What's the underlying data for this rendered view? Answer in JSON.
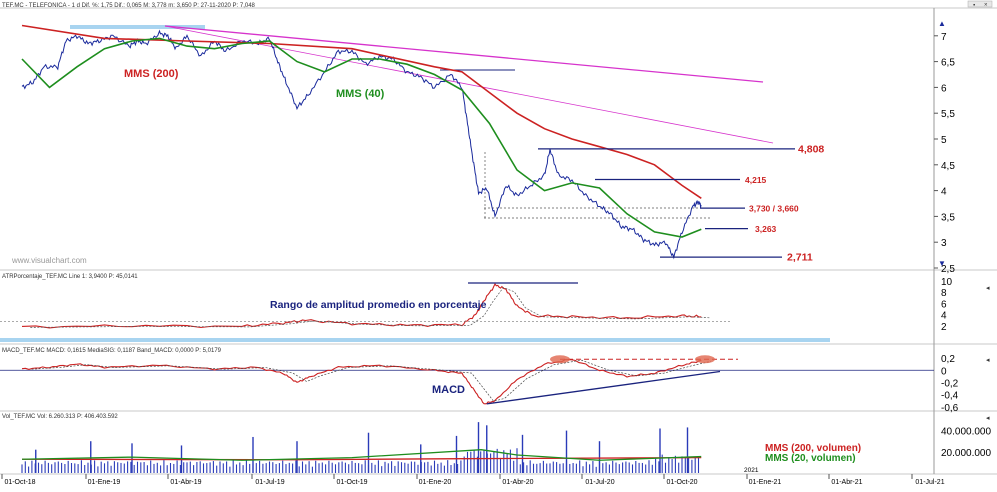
{
  "header": {
    "main": "TEF.MC - TELEFONICA - 1 d Dif. %: 1,75 Dif.: 0,065 M: 3,778 m: 3,650 P: 27-11-2020 P: 7,048",
    "atr": "ATRPorcentaje_TEF.MC Line 1: 3,9400 P: 45,0141",
    "macd": "MACD_TEF.MC MACD: 0,1615 MediaSIG: 0,1187 Band_MACD: 0,0000 P: 5,0179",
    "vol": "Vol_TEF.MC Vol: 6.260.313 P: 406.403.592"
  },
  "watermark": "www.visualchart.com",
  "annotations": {
    "mms200": "MMS (200)",
    "mms40": "MMS (40)",
    "atr_title": "Rango de amplitud promedio en porcentaje",
    "macd_title": "MACD",
    "vol_mms200": "MMS (200, volumen)",
    "vol_mms20": "MMS (20, volumen)"
  },
  "colors": {
    "price": "#1a2a9c",
    "mms200": "#cc2222",
    "mms40": "#1e8e1e",
    "trend": "#d633cc",
    "level": "#1a237e",
    "macd_signal": "#cc2222",
    "volume": "#2a3ab8",
    "highlight": "#a8d4f0"
  },
  "chart_data": {
    "type": "line",
    "x_ticks": [
      "01-Oct-18",
      "01-Ene-19",
      "01-Abr-19",
      "01-Jul-19",
      "01-Oct-19",
      "01-Ene-20",
      "01-Abr-20",
      "01-Jul-20",
      "01-Oct-20",
      "01-Ene-21",
      "01-Abr-21",
      "01-Jul-21"
    ],
    "x_extra_label": "2021",
    "panels": {
      "price": {
        "ylim": [
          2.5,
          7.5
        ],
        "y_ticks": [
          "7",
          "6,5",
          "6",
          "5,5",
          "5",
          "4,5",
          "4",
          "3,5",
          "3",
          "2,5"
        ],
        "y_tick_values": [
          7,
          6.5,
          6,
          5.5,
          5,
          4.5,
          4,
          3.5,
          3,
          2.5
        ],
        "series": [
          {
            "role": "price",
            "points": [
              [
                0,
                6.0
              ],
              [
                0.4,
                6.1
              ],
              [
                0.8,
                6.4
              ],
              [
                1.3,
                6.4
              ],
              [
                1.6,
                6.9
              ],
              [
                2.0,
                7.0
              ],
              [
                2.4,
                6.85
              ],
              [
                2.8,
                6.9
              ],
              [
                3.3,
                7.0
              ],
              [
                3.9,
                6.8
              ],
              [
                4.2,
                6.9
              ],
              [
                4.5,
                6.85
              ],
              [
                5.0,
                7.05
              ],
              [
                5.3,
                7.0
              ],
              [
                5.6,
                6.75
              ],
              [
                6.0,
                7.0
              ],
              [
                6.5,
                6.6
              ],
              [
                7.0,
                6.9
              ],
              [
                7.4,
                6.7
              ],
              [
                8.0,
                6.9
              ],
              [
                8.6,
                6.85
              ],
              [
                9.0,
                6.95
              ],
              [
                9.3,
                6.5
              ],
              [
                9.6,
                6.1
              ],
              [
                10.0,
                5.6
              ],
              [
                10.4,
                5.85
              ],
              [
                11.0,
                6.3
              ],
              [
                11.5,
                6.7
              ],
              [
                12.0,
                6.7
              ],
              [
                12.5,
                6.45
              ],
              [
                13.0,
                6.6
              ],
              [
                13.5,
                6.55
              ],
              [
                14.0,
                6.3
              ],
              [
                14.5,
                6.2
              ],
              [
                15.0,
                6.0
              ],
              [
                15.6,
                6.25
              ],
              [
                16.0,
                6.0
              ],
              [
                16.2,
                5.3
              ],
              [
                16.4,
                4.6
              ],
              [
                16.6,
                3.95
              ],
              [
                16.9,
                4.05
              ],
              [
                17.2,
                3.5
              ],
              [
                17.6,
                4.1
              ],
              [
                18.0,
                3.9
              ],
              [
                18.5,
                4.1
              ],
              [
                19.0,
                4.3
              ],
              [
                19.2,
                4.8
              ],
              [
                19.5,
                4.3
              ],
              [
                20.0,
                4.2
              ],
              [
                20.5,
                3.9
              ],
              [
                21.0,
                3.7
              ],
              [
                21.4,
                3.55
              ],
              [
                21.8,
                3.3
              ],
              [
                22.2,
                3.25
              ],
              [
                22.6,
                3.05
              ],
              [
                23.0,
                2.95
              ],
              [
                23.4,
                3.0
              ],
              [
                23.7,
                2.711
              ],
              [
                24.0,
                3.2
              ],
              [
                24.4,
                3.7
              ],
              [
                24.6,
                3.78
              ],
              [
                24.7,
                3.7
              ]
            ]
          },
          {
            "role": "mms200",
            "points": [
              [
                0,
                7.2
              ],
              [
                3,
                6.95
              ],
              [
                6,
                6.9
              ],
              [
                9,
                6.85
              ],
              [
                12,
                6.75
              ],
              [
                15,
                6.4
              ],
              [
                16,
                6.3
              ],
              [
                17,
                5.9
              ],
              [
                18,
                5.5
              ],
              [
                19,
                5.2
              ],
              [
                20,
                5.0
              ],
              [
                21,
                4.85
              ],
              [
                22,
                4.7
              ],
              [
                23,
                4.5
              ],
              [
                24,
                4.1
              ],
              [
                24.7,
                3.85
              ]
            ]
          },
          {
            "role": "mms40",
            "points": [
              [
                0,
                6.55
              ],
              [
                1,
                6.0
              ],
              [
                2,
                6.4
              ],
              [
                3,
                6.75
              ],
              [
                4,
                6.9
              ],
              [
                5,
                6.95
              ],
              [
                6,
                6.8
              ],
              [
                7,
                6.75
              ],
              [
                8,
                6.85
              ],
              [
                9,
                6.9
              ],
              [
                10,
                6.5
              ],
              [
                11,
                6.3
              ],
              [
                12,
                6.55
              ],
              [
                13,
                6.55
              ],
              [
                14,
                6.45
              ],
              [
                15,
                6.25
              ],
              [
                16,
                5.95
              ],
              [
                17,
                5.3
              ],
              [
                18,
                4.4
              ],
              [
                19,
                4.0
              ],
              [
                20,
                4.15
              ],
              [
                21,
                4.05
              ],
              [
                22,
                3.55
              ],
              [
                23,
                3.2
              ],
              [
                24,
                3.1
              ],
              [
                24.7,
                3.25
              ]
            ]
          }
        ],
        "levels": [
          "4,808",
          "4,215",
          "3,730 / 3,660",
          "3,263",
          "2,711"
        ],
        "level_values": [
          4.808,
          4.215,
          3.66,
          3.263,
          2.711
        ]
      },
      "atr": {
        "ylim": [
          0,
          10
        ],
        "y_ticks": [
          "10",
          "8",
          "6",
          "4",
          "2"
        ],
        "y_tick_values": [
          10,
          8,
          6,
          4,
          2
        ],
        "series": [
          {
            "role": "atr",
            "points": [
              [
                0,
                1.8
              ],
              [
                4,
                2.0
              ],
              [
                8,
                1.9
              ],
              [
                9.5,
                2.5
              ],
              [
                10.3,
                3.0
              ],
              [
                12,
                2.4
              ],
              [
                14,
                2.1
              ],
              [
                16,
                2.2
              ],
              [
                16.5,
                4.0
              ],
              [
                16.8,
                6.5
              ],
              [
                17.2,
                9.3
              ],
              [
                17.6,
                8.5
              ],
              [
                18.0,
                5.5
              ],
              [
                18.6,
                3.8
              ],
              [
                20,
                3.6
              ],
              [
                22,
                3.4
              ],
              [
                24,
                3.8
              ],
              [
                24.7,
                3.6
              ]
            ]
          }
        ]
      },
      "macd": {
        "ylim": [
          -0.65,
          0.25
        ],
        "y_ticks": [
          "0,2",
          "0",
          "-0,2",
          "-0,4",
          "-0,6"
        ],
        "y_tick_values": [
          0.2,
          0,
          -0.2,
          -0.4,
          -0.6
        ],
        "series": [
          {
            "role": "macd",
            "points": [
              [
                0,
                0.02
              ],
              [
                1,
                0.05
              ],
              [
                2,
                0.1
              ],
              [
                3,
                0.05
              ],
              [
                5,
                0.08
              ],
              [
                7,
                0.02
              ],
              [
                8.5,
                0.05
              ],
              [
                9.5,
                -0.05
              ],
              [
                10.0,
                -0.2
              ],
              [
                10.5,
                -0.1
              ],
              [
                11.5,
                0.05
              ],
              [
                13,
                0.08
              ],
              [
                15,
                0.0
              ],
              [
                16,
                -0.05
              ],
              [
                16.4,
                -0.3
              ],
              [
                16.8,
                -0.55
              ],
              [
                17.2,
                -0.5
              ],
              [
                18,
                -0.15
              ],
              [
                19,
                0.1
              ],
              [
                20,
                0.18
              ],
              [
                21,
                0.0
              ],
              [
                22,
                -0.1
              ],
              [
                23,
                -0.05
              ],
              [
                24,
                0.08
              ],
              [
                24.7,
                0.16
              ]
            ]
          }
        ]
      },
      "volume": {
        "ylim": [
          0,
          50000000
        ],
        "y_ticks": [
          "40.000.000",
          "20.000.000"
        ],
        "y_tick_values": [
          40000000,
          20000000
        ],
        "bars": [
          {
            "x": 0.5,
            "v": 22000000
          },
          {
            "x": 2.5,
            "v": 30000000
          },
          {
            "x": 4.0,
            "v": 28000000
          },
          {
            "x": 5.8,
            "v": 26000000
          },
          {
            "x": 8.4,
            "v": 34000000
          },
          {
            "x": 10.0,
            "v": 30000000
          },
          {
            "x": 12.6,
            "v": 38000000
          },
          {
            "x": 14.5,
            "v": 27000000
          },
          {
            "x": 15.8,
            "v": 35000000
          },
          {
            "x": 16.6,
            "v": 48000000
          },
          {
            "x": 16.9,
            "v": 45000000
          },
          {
            "x": 18.2,
            "v": 36000000
          },
          {
            "x": 19.8,
            "v": 40000000
          },
          {
            "x": 21.0,
            "v": 30000000
          },
          {
            "x": 23.2,
            "v": 42000000
          },
          {
            "x": 24.2,
            "v": 43000000
          }
        ]
      }
    }
  }
}
